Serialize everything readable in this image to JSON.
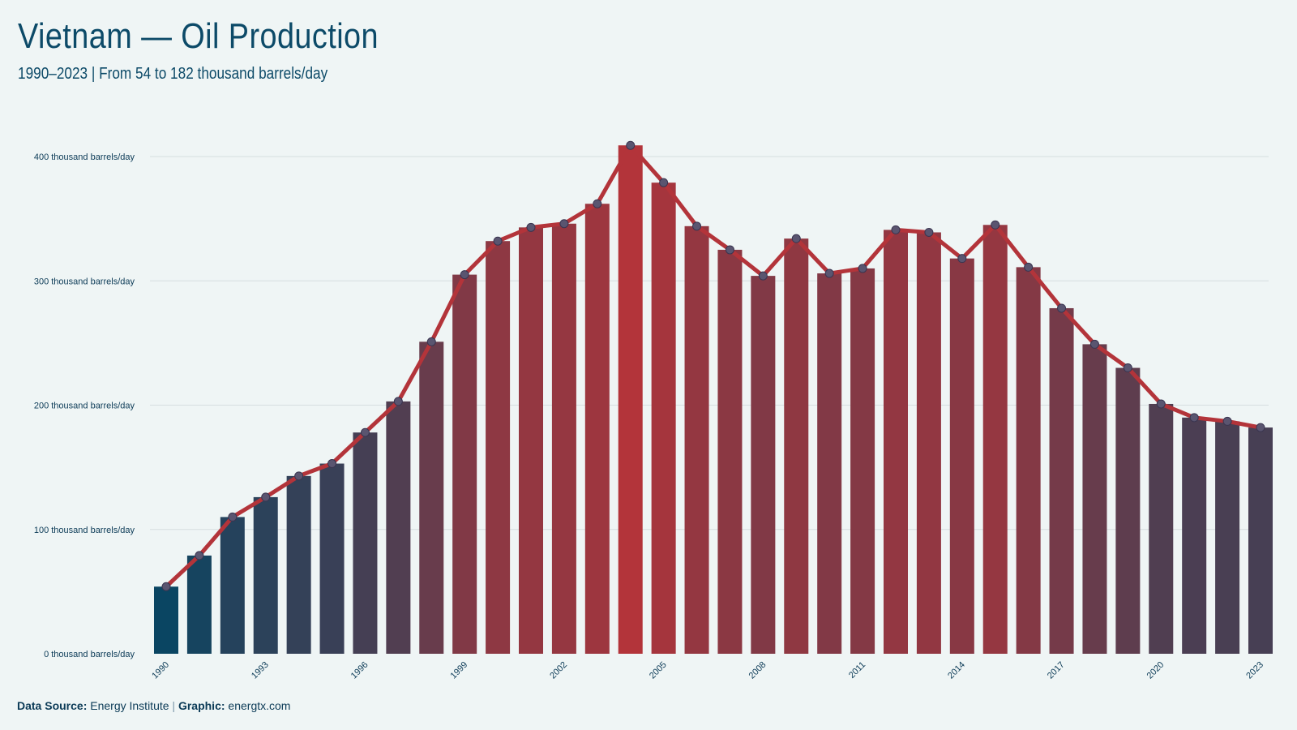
{
  "header": {
    "title": "Vietnam — Oil Production",
    "subtitle": "1990–2023 | From 54 to 182 thousand barrels/day"
  },
  "footer": {
    "source_label": "Data Source:",
    "source_value": "Energy Institute",
    "separator": "|",
    "graphic_label": "Graphic:",
    "graphic_value": "energtx.com"
  },
  "colors": {
    "background": "#eff5f5",
    "low": "#0a4562",
    "high": "#b3343a",
    "line": "#b3343a",
    "marker": "#5a5570",
    "grid": "#d6dee0"
  },
  "chart_data": {
    "type": "bar",
    "title": "Vietnam — Oil Production",
    "subtitle": "1990–2023 | From 54 to 182 thousand barrels/day",
    "xlabel": "",
    "ylabel": "",
    "y_unit_suffix": " thousand barrels/day",
    "ylim": [
      0,
      400
    ],
    "yticks": [
      0,
      100,
      200,
      300,
      400
    ],
    "grid": "horizontal",
    "overlay": "line with circle markers",
    "x_tick_labels": [
      "1990",
      "1993",
      "1996",
      "1999",
      "2002",
      "2005",
      "2008",
      "2011",
      "2014",
      "2017",
      "2020",
      "2023"
    ],
    "categories": [
      "1990",
      "1991",
      "1992",
      "1993",
      "1994",
      "1995",
      "1996",
      "1997",
      "1998",
      "1999",
      "2000",
      "2001",
      "2002",
      "2003",
      "2004",
      "2005",
      "2006",
      "2007",
      "2008",
      "2009",
      "2010",
      "2011",
      "2012",
      "2013",
      "2014",
      "2015",
      "2016",
      "2017",
      "2018",
      "2019",
      "2020",
      "2021",
      "2022",
      "2023"
    ],
    "values": [
      54,
      79,
      110,
      126,
      143,
      153,
      178,
      203,
      251,
      305,
      332,
      343,
      346,
      362,
      409,
      379,
      344,
      325,
      304,
      334,
      306,
      310,
      341,
      339,
      318,
      345,
      311,
      278,
      249,
      230,
      201,
      190,
      187,
      182
    ]
  }
}
